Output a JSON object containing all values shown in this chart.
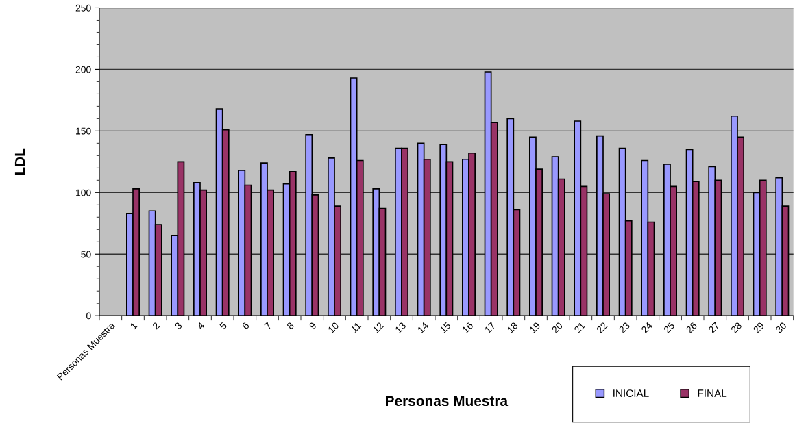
{
  "chart_data": {
    "type": "bar",
    "xlabel": "Personas Muestra",
    "ylabel": "LDL",
    "categories": [
      "Personas Muestra",
      "1",
      "2",
      "3",
      "4",
      "5",
      "6",
      "7",
      "8",
      "9",
      "10",
      "11",
      "12",
      "13",
      "14",
      "15",
      "16",
      "17",
      "18",
      "19",
      "20",
      "21",
      "22",
      "23",
      "24",
      "25",
      "26",
      "27",
      "28",
      "29",
      "30"
    ],
    "series": [
      {
        "name": "INICIAL",
        "color": "#9999ff",
        "values": [
          null,
          83,
          85,
          65,
          108,
          168,
          118,
          124,
          107,
          147,
          128,
          193,
          103,
          136,
          140,
          139,
          127,
          198,
          160,
          145,
          129,
          158,
          146,
          136,
          126,
          123,
          135,
          121,
          162,
          100,
          112
        ]
      },
      {
        "name": "FINAL",
        "color": "#993366",
        "values": [
          null,
          103,
          74,
          125,
          102,
          151,
          106,
          102,
          117,
          98,
          89,
          126,
          87,
          136,
          127,
          125,
          132,
          157,
          86,
          119,
          111,
          105,
          99,
          77,
          76,
          105,
          109,
          110,
          145,
          110,
          89
        ]
      }
    ],
    "ylim": [
      0,
      250
    ],
    "yticks": [
      0,
      50,
      100,
      150,
      200,
      250
    ],
    "grid": "y",
    "legend": "bottom right"
  }
}
